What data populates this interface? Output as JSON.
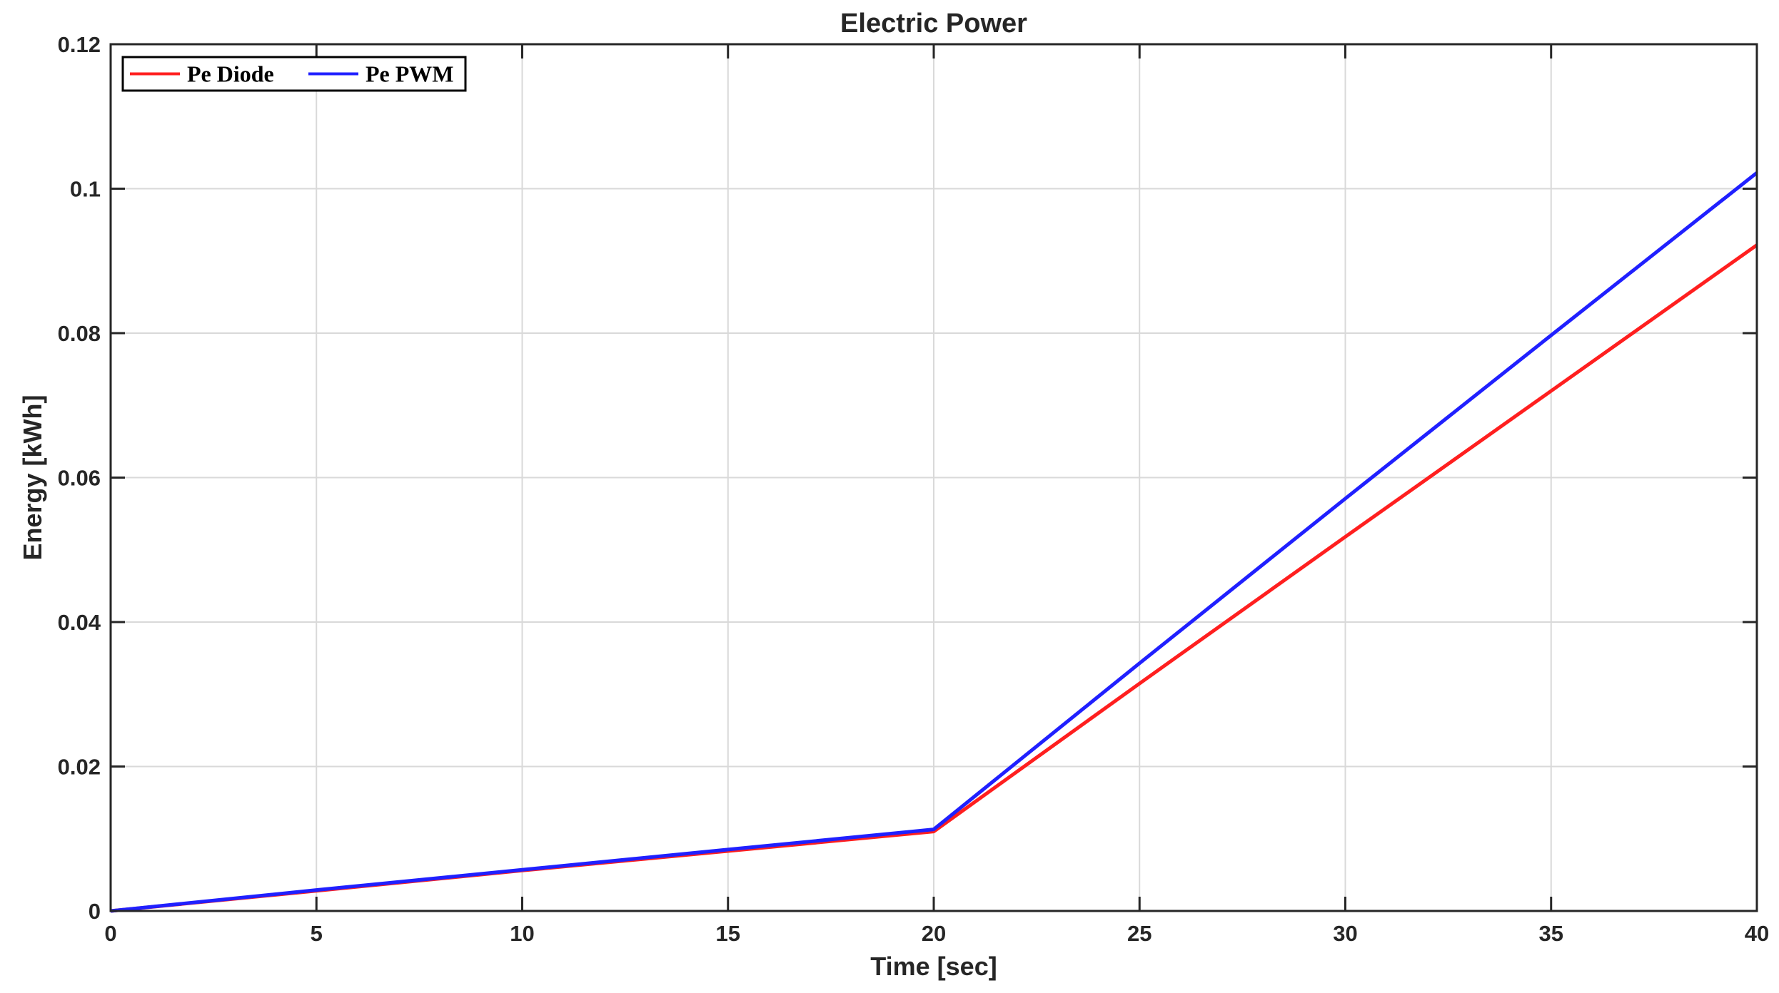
{
  "chart_data": {
    "type": "line",
    "title": "Electric Power",
    "xlabel": "Time [sec]",
    "ylabel": "Energy [kWh]",
    "xlim": [
      0,
      40
    ],
    "ylim": [
      0,
      0.12
    ],
    "xticks": [
      0,
      5,
      10,
      15,
      20,
      25,
      30,
      35,
      40
    ],
    "yticks": [
      0,
      0.02,
      0.04,
      0.06,
      0.08,
      0.1,
      0.12
    ],
    "xtick_labels": [
      "0",
      "5",
      "10",
      "15",
      "20",
      "25",
      "30",
      "35",
      "40"
    ],
    "ytick_labels": [
      "0",
      "0.02",
      "0.04",
      "0.06",
      "0.08",
      "0.1",
      "0.12"
    ],
    "grid": true,
    "legend_position": "top-left",
    "series": [
      {
        "name": "Pe Diode",
        "color": "#ff1f1f",
        "x": [
          0,
          5,
          10,
          15,
          20,
          25,
          30,
          35,
          40
        ],
        "y": [
          0,
          0.0028,
          0.0056,
          0.0083,
          0.011,
          0.0315,
          0.0518,
          0.072,
          0.0922
        ]
      },
      {
        "name": "Pe PWM",
        "color": "#2020ff",
        "x": [
          0,
          5,
          10,
          15,
          20,
          25,
          30,
          35,
          40
        ],
        "y": [
          0,
          0.0029,
          0.0057,
          0.0085,
          0.0113,
          0.0343,
          0.0571,
          0.0797,
          0.1022
        ]
      }
    ]
  }
}
